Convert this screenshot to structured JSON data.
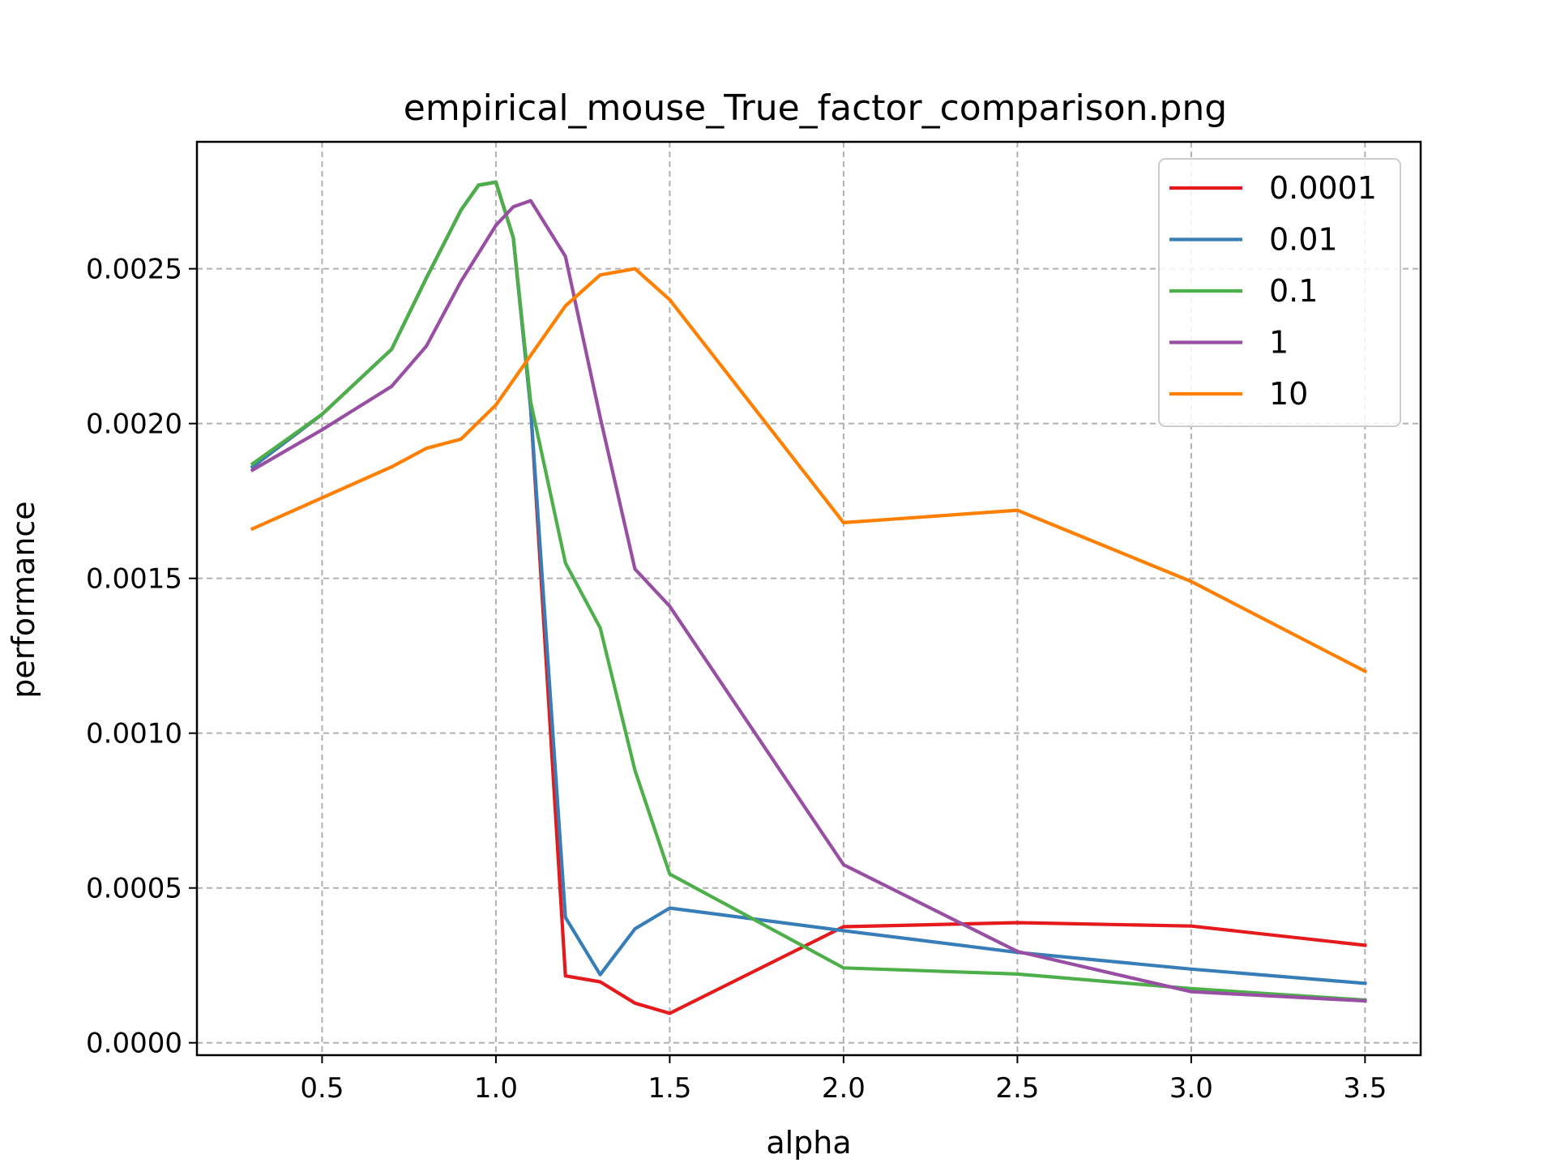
{
  "chart_data": {
    "type": "line",
    "title": "empirical_mouse_True_factor_comparison.png",
    "xlabel": "alpha",
    "ylabel": "performance",
    "xlim": [
      0.14,
      3.66
    ],
    "ylim": [
      -4e-05,
      0.00291
    ],
    "xticks": [
      0.5,
      1.0,
      1.5,
      2.0,
      2.5,
      3.0,
      3.5
    ],
    "xtick_labels": [
      "0.5",
      "1.0",
      "1.5",
      "2.0",
      "2.5",
      "3.0",
      "3.5"
    ],
    "yticks": [
      0.0,
      0.0005,
      0.001,
      0.0015,
      0.002,
      0.0025
    ],
    "ytick_labels": [
      "0.0000",
      "0.0005",
      "0.0010",
      "0.0015",
      "0.0020",
      "0.0025"
    ],
    "grid": true,
    "legend_position": "top-right",
    "series": [
      {
        "name": "0.0001",
        "color": "#e41a1c",
        "points": [
          [
            0.3,
            0.00186
          ],
          [
            0.5,
            0.00203
          ],
          [
            0.7,
            0.00224
          ],
          [
            0.8,
            0.00247
          ],
          [
            0.9,
            0.00269
          ],
          [
            0.95,
            0.00277
          ],
          [
            1.0,
            0.00278
          ],
          [
            1.05,
            0.0026
          ],
          [
            1.1,
            0.00205
          ],
          [
            1.2,
            0.000216
          ],
          [
            1.3,
            0.000197
          ],
          [
            1.4,
            0.000128
          ],
          [
            1.5,
            9.5e-05
          ],
          [
            2.0,
            0.000375
          ],
          [
            2.5,
            0.000388
          ],
          [
            3.0,
            0.000377
          ],
          [
            3.5,
            0.000315
          ]
        ]
      },
      {
        "name": "0.01",
        "color": "#377eb8",
        "points": [
          [
            0.3,
            0.00186
          ],
          [
            0.5,
            0.00203
          ],
          [
            0.7,
            0.00224
          ],
          [
            0.8,
            0.00247
          ],
          [
            0.9,
            0.00269
          ],
          [
            0.95,
            0.00277
          ],
          [
            1.0,
            0.00278
          ],
          [
            1.05,
            0.0026
          ],
          [
            1.1,
            0.00205
          ],
          [
            1.2,
            0.000405
          ],
          [
            1.3,
            0.00022
          ],
          [
            1.4,
            0.000368
          ],
          [
            1.5,
            0.000435
          ],
          [
            2.0,
            0.000362
          ],
          [
            2.5,
            0.000292
          ],
          [
            3.0,
            0.000238
          ],
          [
            3.5,
            0.000192
          ]
        ]
      },
      {
        "name": "0.1",
        "color": "#4daf4a",
        "points": [
          [
            0.3,
            0.00187
          ],
          [
            0.5,
            0.00203
          ],
          [
            0.7,
            0.00224
          ],
          [
            0.8,
            0.00247
          ],
          [
            0.9,
            0.00269
          ],
          [
            0.95,
            0.00277
          ],
          [
            1.0,
            0.00278
          ],
          [
            1.05,
            0.0026
          ],
          [
            1.1,
            0.00207
          ],
          [
            1.2,
            0.00155
          ],
          [
            1.3,
            0.00134
          ],
          [
            1.4,
            0.00088
          ],
          [
            1.5,
            0.000545
          ],
          [
            2.0,
            0.000242
          ],
          [
            2.5,
            0.000222
          ],
          [
            3.0,
            0.000175
          ],
          [
            3.5,
            0.000138
          ]
        ]
      },
      {
        "name": "1",
        "color": "#984ea3",
        "points": [
          [
            0.3,
            0.00185
          ],
          [
            0.5,
            0.00198
          ],
          [
            0.7,
            0.00212
          ],
          [
            0.8,
            0.00225
          ],
          [
            0.9,
            0.00246
          ],
          [
            0.95,
            0.00255
          ],
          [
            1.0,
            0.00264
          ],
          [
            1.05,
            0.0027
          ],
          [
            1.1,
            0.00272
          ],
          [
            1.2,
            0.00254
          ],
          [
            1.3,
            0.00202
          ],
          [
            1.4,
            0.00153
          ],
          [
            1.5,
            0.00141
          ],
          [
            2.0,
            0.000575
          ],
          [
            2.5,
            0.000295
          ],
          [
            3.0,
            0.000165
          ],
          [
            3.5,
            0.000135
          ]
        ]
      },
      {
        "name": "10",
        "color": "#ff7f00",
        "points": [
          [
            0.3,
            0.00166
          ],
          [
            0.5,
            0.00176
          ],
          [
            0.7,
            0.00186
          ],
          [
            0.8,
            0.00192
          ],
          [
            0.9,
            0.00195
          ],
          [
            1.0,
            0.00206
          ],
          [
            1.1,
            0.00222
          ],
          [
            1.2,
            0.00238
          ],
          [
            1.3,
            0.00248
          ],
          [
            1.4,
            0.0025
          ],
          [
            1.5,
            0.0024
          ],
          [
            2.0,
            0.00168
          ],
          [
            2.5,
            0.00172
          ],
          [
            3.0,
            0.00149
          ],
          [
            3.5,
            0.0012
          ]
        ]
      }
    ]
  }
}
